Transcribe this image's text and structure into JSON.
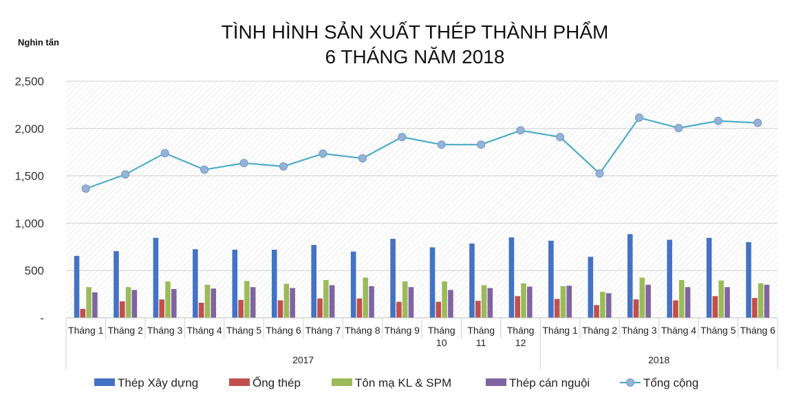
{
  "chart_data": {
    "type": "bar",
    "title": [
      "TÌNH HÌNH SẢN XUẤT THÉP THÀNH PHẨM",
      "6 THÁNG NĂM 2018"
    ],
    "ylabel": "Nghìn tấn",
    "ylim": [
      0,
      2500
    ],
    "yticks": [
      {
        "value": 0,
        "label": "-"
      },
      {
        "value": 500,
        "label": "500"
      },
      {
        "value": 1000,
        "label": "1,000"
      },
      {
        "value": 1500,
        "label": "1,500"
      },
      {
        "value": 2000,
        "label": "2,000"
      },
      {
        "value": 2500,
        "label": "2,500"
      }
    ],
    "categories": [
      [
        "Tháng 1"
      ],
      [
        "Tháng 2"
      ],
      [
        "Tháng 3"
      ],
      [
        "Tháng 4"
      ],
      [
        "Tháng 5"
      ],
      [
        "Tháng 6"
      ],
      [
        "Tháng 7"
      ],
      [
        "Tháng 8"
      ],
      [
        "Tháng 9"
      ],
      [
        "Tháng",
        "10"
      ],
      [
        "Tháng",
        "11"
      ],
      [
        "Tháng",
        "12"
      ],
      [
        "Tháng 1"
      ],
      [
        "Tháng 2"
      ],
      [
        "Tháng 3"
      ],
      [
        "Tháng 4"
      ],
      [
        "Tháng 5"
      ],
      [
        "Tháng 6"
      ]
    ],
    "groups": [
      {
        "label": "2017",
        "start": 0,
        "end": 11
      },
      {
        "label": "2018",
        "start": 12,
        "end": 17
      }
    ],
    "series": [
      {
        "name": "Thép Xây dựng",
        "kind": "bar",
        "color": "#4472C4",
        "values": [
          655,
          705,
          845,
          725,
          720,
          720,
          770,
          700,
          835,
          745,
          785,
          850,
          815,
          645,
          885,
          825,
          845,
          800
        ]
      },
      {
        "name": "Ống thép",
        "kind": "bar",
        "color": "#C0504D",
        "values": [
          95,
          175,
          195,
          160,
          190,
          185,
          205,
          205,
          170,
          170,
          180,
          230,
          200,
          135,
          195,
          185,
          230,
          210
        ]
      },
      {
        "name": "Tôn mạ KL & SPM",
        "kind": "bar",
        "color": "#9BBB59",
        "values": [
          325,
          325,
          385,
          350,
          390,
          360,
          400,
          425,
          385,
          385,
          345,
          365,
          335,
          275,
          425,
          400,
          395,
          365
        ]
      },
      {
        "name": "Thép cán nguội",
        "kind": "bar",
        "color": "#8064A2",
        "values": [
          270,
          295,
          305,
          310,
          325,
          315,
          345,
          335,
          325,
          295,
          315,
          330,
          340,
          260,
          350,
          325,
          325,
          350
        ]
      },
      {
        "name": "Tổng cộng",
        "kind": "line",
        "color": "#4BACC6",
        "values": [
          1365,
          1515,
          1740,
          1565,
          1635,
          1600,
          1735,
          1685,
          1910,
          1830,
          1830,
          1980,
          1910,
          1525,
          2115,
          2005,
          2080,
          2060
        ]
      }
    ],
    "legend_position": "bottom",
    "grid": true
  }
}
